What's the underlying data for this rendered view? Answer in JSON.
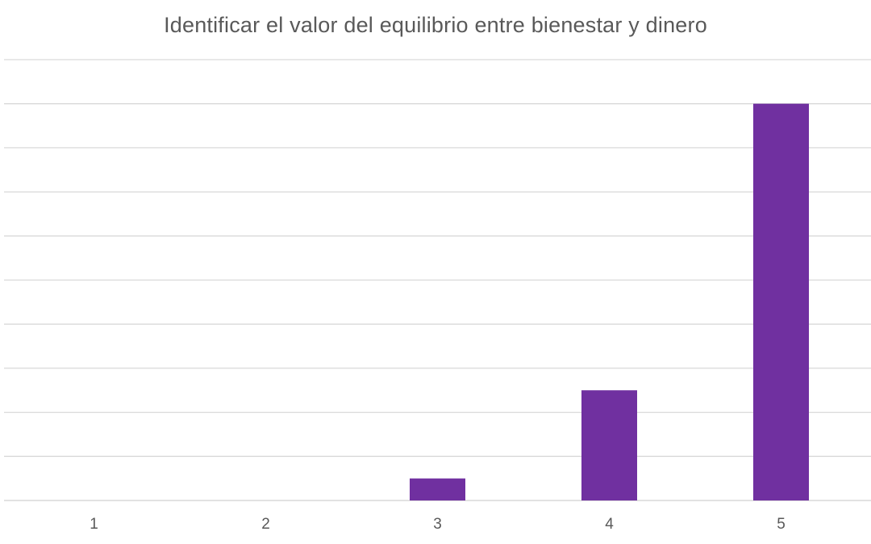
{
  "chart_data": {
    "type": "bar",
    "title": "Identificar el valor del equilibrio entre bienestar y dinero",
    "categories": [
      "1",
      "2",
      "3",
      "4",
      "5"
    ],
    "values": [
      0,
      0,
      1,
      5,
      18
    ],
    "ylim": [
      0,
      20
    ],
    "grid": true,
    "legend": "none",
    "bar_color": "#7030a0",
    "grid_color": "#d9d9d9"
  }
}
